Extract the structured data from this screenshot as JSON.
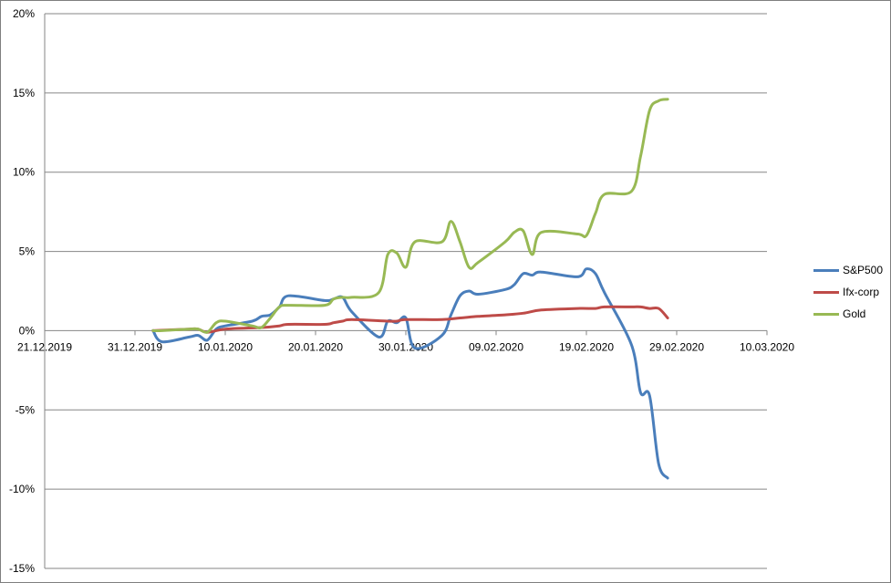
{
  "chart_data": {
    "type": "line",
    "title": "",
    "xlabel": "",
    "ylabel": "",
    "x_ticks": [
      "21.12.2019",
      "31.12.2019",
      "10.01.2020",
      "20.01.2020",
      "30.01.2020",
      "09.02.2020",
      "19.02.2020",
      "29.02.2020",
      "10.03.2020"
    ],
    "x_range": [
      "2019-12-21",
      "2020-03-10"
    ],
    "y_ticks": [
      "-15%",
      "-10%",
      "-5%",
      "0%",
      "5%",
      "10%",
      "15%",
      "20%"
    ],
    "y_range": [
      -15,
      20
    ],
    "grid": "horizontal",
    "legend_position": "right",
    "series": [
      {
        "name": "S&P500",
        "color": "#4a7ebb",
        "points": [
          [
            "2020-01-02",
            0
          ],
          [
            "2020-01-03",
            -0.7
          ],
          [
            "2020-01-06",
            -0.4
          ],
          [
            "2020-01-07",
            -0.3
          ],
          [
            "2020-01-08",
            -0.6
          ],
          [
            "2020-01-09",
            0.1
          ],
          [
            "2020-01-10",
            0.3
          ],
          [
            "2020-01-13",
            0.6
          ],
          [
            "2020-01-14",
            0.9
          ],
          [
            "2020-01-15",
            1.0
          ],
          [
            "2020-01-16",
            1.5
          ],
          [
            "2020-01-17",
            2.2
          ],
          [
            "2020-01-21",
            1.9
          ],
          [
            "2020-01-22",
            2.0
          ],
          [
            "2020-01-23",
            2.1
          ],
          [
            "2020-01-24",
            1.2
          ],
          [
            "2020-01-27",
            -0.4
          ],
          [
            "2020-01-28",
            0.6
          ],
          [
            "2020-01-29",
            0.5
          ],
          [
            "2020-01-30",
            0.8
          ],
          [
            "2020-01-31",
            -1.1
          ],
          [
            "2020-02-03",
            -0.3
          ],
          [
            "2020-02-04",
            1.0
          ],
          [
            "2020-02-05",
            2.2
          ],
          [
            "2020-02-06",
            2.5
          ],
          [
            "2020-02-07",
            2.3
          ],
          [
            "2020-02-10",
            2.6
          ],
          [
            "2020-02-11",
            2.9
          ],
          [
            "2020-02-12",
            3.6
          ],
          [
            "2020-02-13",
            3.5
          ],
          [
            "2020-02-14",
            3.7
          ],
          [
            "2020-02-18",
            3.4
          ],
          [
            "2020-02-19",
            3.9
          ],
          [
            "2020-02-20",
            3.6
          ],
          [
            "2020-02-21",
            2.4
          ],
          [
            "2020-02-24",
            -0.9
          ],
          [
            "2020-02-25",
            -3.9
          ],
          [
            "2020-02-26",
            -4.1
          ],
          [
            "2020-02-27",
            -8.4
          ],
          [
            "2020-02-28",
            -9.3
          ]
        ]
      },
      {
        "name": "Ifx-corp",
        "color": "#be4b48",
        "points": [
          [
            "2020-01-02",
            0
          ],
          [
            "2020-01-06",
            0.1
          ],
          [
            "2020-01-07",
            0.1
          ],
          [
            "2020-01-08",
            -0.1
          ],
          [
            "2020-01-10",
            0.1
          ],
          [
            "2020-01-14",
            0.2
          ],
          [
            "2020-01-16",
            0.3
          ],
          [
            "2020-01-17",
            0.4
          ],
          [
            "2020-01-21",
            0.4
          ],
          [
            "2020-01-22",
            0.5
          ],
          [
            "2020-01-23",
            0.6
          ],
          [
            "2020-01-24",
            0.7
          ],
          [
            "2020-01-28",
            0.6
          ],
          [
            "2020-01-29",
            0.6
          ],
          [
            "2020-01-30",
            0.7
          ],
          [
            "2020-02-03",
            0.7
          ],
          [
            "2020-02-05",
            0.8
          ],
          [
            "2020-02-07",
            0.9
          ],
          [
            "2020-02-10",
            1.0
          ],
          [
            "2020-02-12",
            1.1
          ],
          [
            "2020-02-14",
            1.3
          ],
          [
            "2020-02-18",
            1.4
          ],
          [
            "2020-02-20",
            1.4
          ],
          [
            "2020-02-21",
            1.5
          ],
          [
            "2020-02-24",
            1.5
          ],
          [
            "2020-02-25",
            1.5
          ],
          [
            "2020-02-26",
            1.4
          ],
          [
            "2020-02-27",
            1.4
          ],
          [
            "2020-02-28",
            0.8
          ]
        ]
      },
      {
        "name": "Gold",
        "color": "#98b954",
        "points": [
          [
            "2020-01-02",
            0
          ],
          [
            "2020-01-03",
            0
          ],
          [
            "2020-01-06",
            0.1
          ],
          [
            "2020-01-07",
            0.1
          ],
          [
            "2020-01-08",
            -0.1
          ],
          [
            "2020-01-09",
            0.5
          ],
          [
            "2020-01-10",
            0.6
          ],
          [
            "2020-01-13",
            0.3
          ],
          [
            "2020-01-14",
            0.2
          ],
          [
            "2020-01-15",
            0.8
          ],
          [
            "2020-01-16",
            1.5
          ],
          [
            "2020-01-17",
            1.6
          ],
          [
            "2020-01-21",
            1.6
          ],
          [
            "2020-01-22",
            2.0
          ],
          [
            "2020-01-23",
            2.1
          ],
          [
            "2020-01-24",
            2.1
          ],
          [
            "2020-01-27",
            2.4
          ],
          [
            "2020-01-28",
            4.8
          ],
          [
            "2020-01-29",
            4.9
          ],
          [
            "2020-01-30",
            4.0
          ],
          [
            "2020-01-31",
            5.6
          ],
          [
            "2020-02-03",
            5.6
          ],
          [
            "2020-02-04",
            6.9
          ],
          [
            "2020-02-05",
            5.6
          ],
          [
            "2020-02-06",
            4.0
          ],
          [
            "2020-02-07",
            4.3
          ],
          [
            "2020-02-10",
            5.6
          ],
          [
            "2020-02-11",
            6.2
          ],
          [
            "2020-02-12",
            6.3
          ],
          [
            "2020-02-13",
            4.8
          ],
          [
            "2020-02-14",
            6.2
          ],
          [
            "2020-02-18",
            6.1
          ],
          [
            "2020-02-19",
            6.0
          ],
          [
            "2020-02-20",
            7.4
          ],
          [
            "2020-02-21",
            8.6
          ],
          [
            "2020-02-24",
            8.8
          ],
          [
            "2020-02-25",
            11.0
          ],
          [
            "2020-02-26",
            13.9
          ],
          [
            "2020-02-27",
            14.5
          ],
          [
            "2020-02-28",
            14.6
          ]
        ]
      }
    ]
  }
}
